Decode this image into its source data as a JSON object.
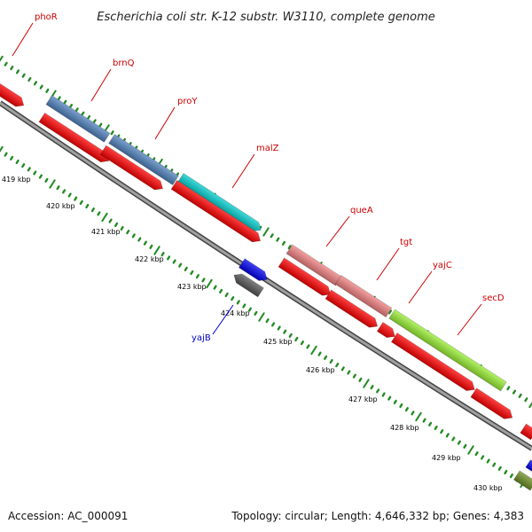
{
  "title": "Escherichia coli str. K-12 substr. W3110, complete genome",
  "footer": {
    "accession": "Accession: AC_000091",
    "summary": "Topology: circular; Length: 4,646,332 bp; Genes: 4,383"
  },
  "colors": {
    "backbone": "#888888",
    "cds": "#ff0000",
    "gene_label": "#cc0000",
    "minus_gene_label": "#0000cc",
    "tick_dot": "#228b22",
    "tick_dash": "#228b22"
  },
  "tick_labels": [
    "419 kbp",
    "420 kbp",
    "421 kbp",
    "422 kbp",
    "423 kbp",
    "424 kbp",
    "425 kbp",
    "426 kbp",
    "427 kbp",
    "428 kbp",
    "429 kbp",
    "430 kbp"
  ],
  "genes": [
    {
      "name": "phoR",
      "strand": "+",
      "color": "#ff0000"
    },
    {
      "name": "brnQ",
      "strand": "+",
      "color": "#4f81bd"
    },
    {
      "name": "proY",
      "strand": "+",
      "color": "#4f81bd"
    },
    {
      "name": "malZ",
      "strand": "+",
      "color": "#00cccc"
    },
    {
      "name": "queA",
      "strand": "+",
      "color": "#f08080"
    },
    {
      "name": "tgt",
      "strand": "+",
      "color": "#f08080"
    },
    {
      "name": "yajC",
      "strand": "+",
      "color": "#99ee33"
    },
    {
      "name": "secD",
      "strand": "+",
      "color": "#99ee33"
    },
    {
      "name": "yajB",
      "strand": "-",
      "color": "#0000ee"
    }
  ]
}
